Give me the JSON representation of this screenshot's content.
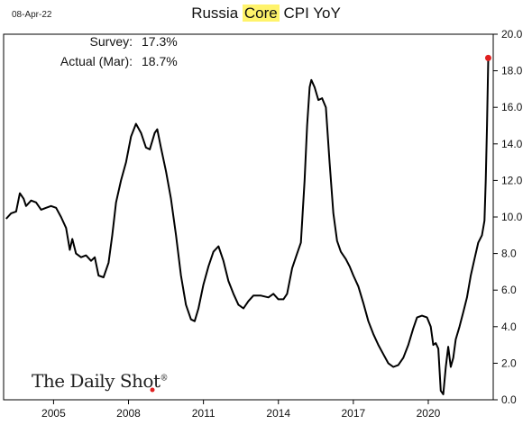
{
  "header": {
    "date": "08-Apr-22",
    "title_pre": "Russia ",
    "title_highlight": "Core",
    "title_post": " CPI YoY",
    "highlight_color": "#fff36b"
  },
  "annotations": [
    {
      "label": "Survey:",
      "value": "17.3%"
    },
    {
      "label": "Actual (Mar):",
      "value": "18.7%"
    }
  ],
  "brand": {
    "name": "The Daily Shot",
    "mark": "®",
    "dot_color": "#e02020"
  },
  "colors": {
    "line": "#000000",
    "endpoint": "#e02020"
  },
  "chart_data": {
    "type": "line",
    "title": "Russia Core CPI YoY",
    "xlabel": "",
    "ylabel": "",
    "xlim": [
      2003.0,
      2022.6
    ],
    "ylim": [
      0,
      20
    ],
    "x_ticks": [
      2005,
      2008,
      2011,
      2014,
      2017,
      2020
    ],
    "y_ticks": [
      "0.0",
      "2.0",
      "4.0",
      "6.0",
      "8.0",
      "10.0",
      "12.0",
      "14.0",
      "16.0",
      "18.0",
      "20.0"
    ],
    "y_axis_side": "right",
    "grid": false,
    "legend": "none",
    "series": [
      {
        "points": [
          [
            2003.1,
            9.9
          ],
          [
            2003.3,
            10.2
          ],
          [
            2003.5,
            10.3
          ],
          [
            2003.65,
            11.3
          ],
          [
            2003.8,
            11.0
          ],
          [
            2003.9,
            10.6
          ],
          [
            2004.1,
            10.9
          ],
          [
            2004.3,
            10.8
          ],
          [
            2004.5,
            10.4
          ],
          [
            2004.7,
            10.5
          ],
          [
            2004.9,
            10.6
          ],
          [
            2005.1,
            10.5
          ],
          [
            2005.3,
            10.0
          ],
          [
            2005.5,
            9.4
          ],
          [
            2005.65,
            8.2
          ],
          [
            2005.75,
            8.8
          ],
          [
            2005.9,
            8.0
          ],
          [
            2006.1,
            7.8
          ],
          [
            2006.3,
            7.9
          ],
          [
            2006.5,
            7.6
          ],
          [
            2006.65,
            7.8
          ],
          [
            2006.8,
            6.8
          ],
          [
            2007.0,
            6.7
          ],
          [
            2007.2,
            7.5
          ],
          [
            2007.35,
            9.0
          ],
          [
            2007.5,
            10.8
          ],
          [
            2007.7,
            12.0
          ],
          [
            2007.9,
            13.0
          ],
          [
            2008.1,
            14.4
          ],
          [
            2008.3,
            15.1
          ],
          [
            2008.5,
            14.6
          ],
          [
            2008.7,
            13.8
          ],
          [
            2008.85,
            13.7
          ],
          [
            2009.05,
            14.6
          ],
          [
            2009.15,
            14.8
          ],
          [
            2009.3,
            13.8
          ],
          [
            2009.5,
            12.5
          ],
          [
            2009.7,
            11.0
          ],
          [
            2009.9,
            9.0
          ],
          [
            2010.1,
            6.8
          ],
          [
            2010.3,
            5.2
          ],
          [
            2010.5,
            4.4
          ],
          [
            2010.65,
            4.3
          ],
          [
            2010.8,
            5.0
          ],
          [
            2011.0,
            6.3
          ],
          [
            2011.2,
            7.3
          ],
          [
            2011.4,
            8.1
          ],
          [
            2011.6,
            8.4
          ],
          [
            2011.8,
            7.6
          ],
          [
            2012.0,
            6.5
          ],
          [
            2012.2,
            5.8
          ],
          [
            2012.4,
            5.2
          ],
          [
            2012.6,
            5.0
          ],
          [
            2012.8,
            5.4
          ],
          [
            2013.0,
            5.7
          ],
          [
            2013.3,
            5.7
          ],
          [
            2013.6,
            5.6
          ],
          [
            2013.8,
            5.8
          ],
          [
            2014.0,
            5.5
          ],
          [
            2014.2,
            5.5
          ],
          [
            2014.35,
            5.8
          ],
          [
            2014.55,
            7.2
          ],
          [
            2014.75,
            8.0
          ],
          [
            2014.9,
            8.6
          ],
          [
            2015.05,
            12.0
          ],
          [
            2015.15,
            15.0
          ],
          [
            2015.25,
            17.1
          ],
          [
            2015.32,
            17.5
          ],
          [
            2015.45,
            17.1
          ],
          [
            2015.6,
            16.4
          ],
          [
            2015.75,
            16.5
          ],
          [
            2015.9,
            16.0
          ],
          [
            2016.05,
            13.0
          ],
          [
            2016.2,
            10.2
          ],
          [
            2016.35,
            8.7
          ],
          [
            2016.5,
            8.1
          ],
          [
            2016.7,
            7.7
          ],
          [
            2016.85,
            7.3
          ],
          [
            2017.0,
            6.8
          ],
          [
            2017.2,
            6.2
          ],
          [
            2017.4,
            5.3
          ],
          [
            2017.6,
            4.3
          ],
          [
            2017.8,
            3.6
          ],
          [
            2018.0,
            3.0
          ],
          [
            2018.2,
            2.5
          ],
          [
            2018.4,
            2.0
          ],
          [
            2018.6,
            1.8
          ],
          [
            2018.8,
            1.9
          ],
          [
            2019.0,
            2.3
          ],
          [
            2019.2,
            3.0
          ],
          [
            2019.4,
            3.9
          ],
          [
            2019.55,
            4.5
          ],
          [
            2019.75,
            4.6
          ],
          [
            2019.95,
            4.5
          ],
          [
            2020.1,
            4.0
          ],
          [
            2020.2,
            3.0
          ],
          [
            2020.3,
            3.1
          ],
          [
            2020.4,
            2.8
          ],
          [
            2020.5,
            0.5
          ],
          [
            2020.6,
            0.3
          ],
          [
            2020.7,
            1.8
          ],
          [
            2020.8,
            2.9
          ],
          [
            2020.9,
            1.8
          ],
          [
            2021.0,
            2.3
          ],
          [
            2021.1,
            3.3
          ],
          [
            2021.25,
            4.0
          ],
          [
            2021.4,
            4.8
          ],
          [
            2021.55,
            5.6
          ],
          [
            2021.7,
            6.8
          ],
          [
            2021.85,
            7.7
          ],
          [
            2022.0,
            8.6
          ],
          [
            2022.15,
            9.0
          ],
          [
            2022.25,
            9.8
          ],
          [
            2022.3,
            12.0
          ],
          [
            2022.35,
            15.0
          ],
          [
            2022.4,
            18.7
          ]
        ]
      }
    ],
    "endpoint": {
      "x": 2022.4,
      "y": 18.7
    }
  }
}
